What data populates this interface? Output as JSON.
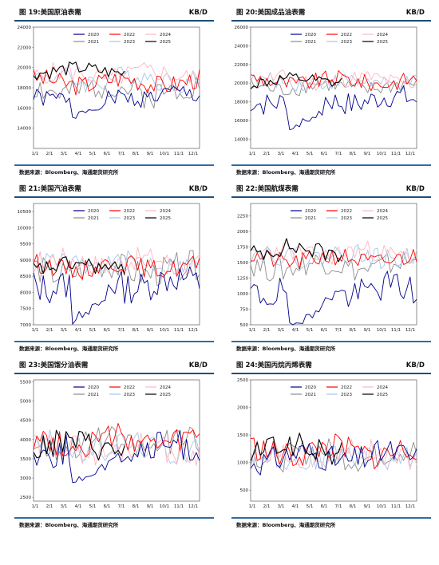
{
  "colors": {
    "2020": "#00008b",
    "2021": "#8c8c8c",
    "2022": "#ff0000",
    "2023": "#a7c7e7",
    "2024": "#ffb6c1",
    "2025": "#000000"
  },
  "source_text": "数据来源：Bloomberg、海通期货研究所",
  "x_ticks": [
    "1/1",
    "2/1",
    "3/1",
    "4/1",
    "5/1",
    "6/1",
    "7/1",
    "8/1",
    "9/1",
    "10/1",
    "11/1",
    "12/1"
  ],
  "chart_data": [
    {
      "type": "line",
      "title": "图 19:美国原油表需",
      "unit": "KB/D",
      "ylim": [
        12000,
        24000
      ],
      "y_ticks": [
        14000,
        16000,
        18000,
        20000,
        22000,
        24000
      ],
      "series": [
        {
          "name": "2020",
          "base": 17200,
          "amp": 900,
          "seed": 1,
          "len": 52
        },
        {
          "name": "2021",
          "base": 17800,
          "amp": 1400,
          "seed": 2,
          "len": 52
        },
        {
          "name": "2022",
          "base": 18600,
          "amp": 1000,
          "seed": 3,
          "len": 52
        },
        {
          "name": "2023",
          "base": 18900,
          "amp": 1100,
          "seed": 4,
          "len": 52
        },
        {
          "name": "2024",
          "base": 19300,
          "amp": 1000,
          "seed": 5,
          "len": 52
        },
        {
          "name": "2025",
          "base": 19700,
          "amp": 700,
          "seed": 6,
          "len": 29
        }
      ]
    },
    {
      "type": "line",
      "title": "图 20:美国成品油表需",
      "unit": "KB/D",
      "ylim": [
        13000,
        26000
      ],
      "y_ticks": [
        14000,
        16000,
        18000,
        20000,
        22000,
        24000,
        26000
      ],
      "series": [
        {
          "name": "2020",
          "base": 18200,
          "amp": 1300,
          "seed": 7,
          "len": 52
        },
        {
          "name": "2021",
          "base": 19600,
          "amp": 900,
          "seed": 8,
          "len": 52
        },
        {
          "name": "2022",
          "base": 20200,
          "amp": 900,
          "seed": 9,
          "len": 52
        },
        {
          "name": "2023",
          "base": 20100,
          "amp": 800,
          "seed": 10,
          "len": 52
        },
        {
          "name": "2024",
          "base": 20300,
          "amp": 900,
          "seed": 11,
          "len": 52
        },
        {
          "name": "2025",
          "base": 20200,
          "amp": 700,
          "seed": 12,
          "len": 29
        }
      ]
    },
    {
      "type": "line",
      "title": "图 21:美国汽油表需",
      "unit": "KB/D",
      "ylim": [
        7000,
        10750
      ],
      "y_ticks": [
        7000,
        7500,
        8000,
        8500,
        9000,
        9500,
        10000,
        10500
      ],
      "series": [
        {
          "name": "2020",
          "base": 8300,
          "amp": 500,
          "seed": 13,
          "len": 52
        },
        {
          "name": "2021",
          "base": 8700,
          "amp": 450,
          "seed": 14,
          "len": 52
        },
        {
          "name": "2022",
          "base": 8800,
          "amp": 300,
          "seed": 15,
          "len": 52
        },
        {
          "name": "2023",
          "base": 8900,
          "amp": 300,
          "seed": 16,
          "len": 52
        },
        {
          "name": "2024",
          "base": 8950,
          "amp": 350,
          "seed": 17,
          "len": 52
        },
        {
          "name": "2025",
          "base": 8800,
          "amp": 250,
          "seed": 18,
          "len": 29
        }
      ]
    },
    {
      "type": "line",
      "title": "图 22:美国航煤表需",
      "unit": "KB/D",
      "ylim": [
        500,
        2450
      ],
      "y_ticks": [
        500,
        750,
        1000,
        1250,
        1500,
        1750,
        2000,
        2250
      ],
      "series": [
        {
          "name": "2020",
          "base": 1050,
          "amp": 250,
          "seed": 19,
          "len": 52
        },
        {
          "name": "2021",
          "base": 1450,
          "amp": 200,
          "seed": 20,
          "len": 52
        },
        {
          "name": "2022",
          "base": 1550,
          "amp": 150,
          "seed": 21,
          "len": 52
        },
        {
          "name": "2023",
          "base": 1600,
          "amp": 170,
          "seed": 22,
          "len": 52
        },
        {
          "name": "2024",
          "base": 1650,
          "amp": 160,
          "seed": 23,
          "len": 52
        },
        {
          "name": "2025",
          "base": 1700,
          "amp": 150,
          "seed": 24,
          "len": 29
        }
      ]
    },
    {
      "type": "line",
      "title": "图 23:美国馏分油表需",
      "unit": "KB/D",
      "ylim": [
        2400,
        5550
      ],
      "y_ticks": [
        2500,
        3000,
        3500,
        4000,
        4500,
        5000,
        5500
      ],
      "series": [
        {
          "name": "2020",
          "base": 3750,
          "amp": 400,
          "seed": 25,
          "len": 52
        },
        {
          "name": "2021",
          "base": 3900,
          "amp": 350,
          "seed": 26,
          "len": 52
        },
        {
          "name": "2022",
          "base": 3950,
          "amp": 350,
          "seed": 27,
          "len": 52
        },
        {
          "name": "2023",
          "base": 3800,
          "amp": 350,
          "seed": 28,
          "len": 52
        },
        {
          "name": "2024",
          "base": 3750,
          "amp": 350,
          "seed": 29,
          "len": 52
        },
        {
          "name": "2025",
          "base": 3850,
          "amp": 350,
          "seed": 30,
          "len": 29
        }
      ]
    },
    {
      "type": "line",
      "title": "图 24:美国丙烷丙烯表需",
      "unit": "KB/D",
      "ylim": [
        300,
        2500
      ],
      "y_ticks": [
        500,
        1000,
        1500,
        2000,
        2500
      ],
      "series": [
        {
          "name": "2020",
          "base": 1100,
          "amp": 250,
          "seed": 31,
          "len": 52
        },
        {
          "name": "2021",
          "base": 1150,
          "amp": 250,
          "seed": 32,
          "len": 52
        },
        {
          "name": "2022",
          "base": 1200,
          "amp": 250,
          "seed": 33,
          "len": 52
        },
        {
          "name": "2023",
          "base": 1100,
          "amp": 230,
          "seed": 34,
          "len": 52
        },
        {
          "name": "2024",
          "base": 1150,
          "amp": 230,
          "seed": 35,
          "len": 52
        },
        {
          "name": "2025",
          "base": 1250,
          "amp": 230,
          "seed": 36,
          "len": 29
        }
      ]
    }
  ]
}
